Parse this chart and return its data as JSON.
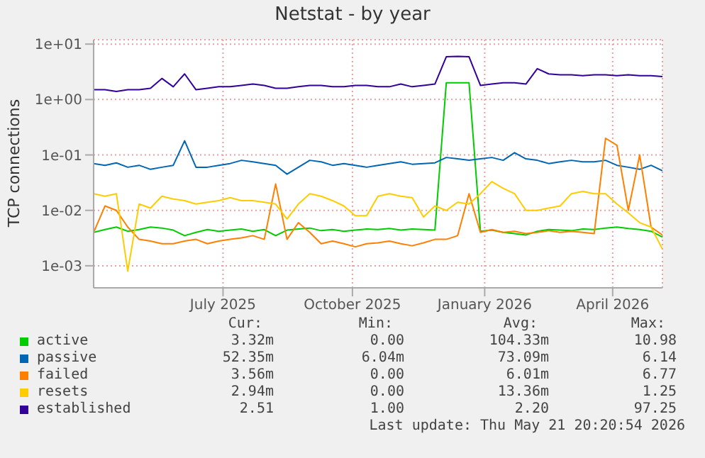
{
  "chart_data": {
    "type": "line",
    "title": "Netstat - by year",
    "ylabel": "TCP connections",
    "log": "y",
    "grid": true,
    "legend": "bottom",
    "marker": "none",
    "line_style": "solid",
    "x": [
      "2025-04-16",
      "2025-04-24",
      "2025-05-02",
      "2025-05-10",
      "2025-05-18",
      "2025-05-26",
      "2025-06-03",
      "2025-06-11",
      "2025-06-19",
      "2025-06-27",
      "2025-07-05",
      "2025-07-13",
      "2025-07-21",
      "2025-07-29",
      "2025-08-06",
      "2025-08-14",
      "2025-08-22",
      "2025-08-30",
      "2025-09-07",
      "2025-09-15",
      "2025-09-23",
      "2025-10-01",
      "2025-10-09",
      "2025-10-17",
      "2025-10-25",
      "2025-11-02",
      "2025-11-10",
      "2025-11-18",
      "2025-11-26",
      "2025-12-04",
      "2025-12-12",
      "2025-12-20",
      "2025-12-28",
      "2026-01-05",
      "2026-01-13",
      "2026-01-21",
      "2026-01-29",
      "2026-02-06",
      "2026-02-14",
      "2026-02-22",
      "2026-03-02",
      "2026-03-10",
      "2026-03-18",
      "2026-03-26",
      "2026-04-03",
      "2026-04-11",
      "2026-04-19",
      "2026-04-27",
      "2026-05-05",
      "2026-05-13",
      "2026-05-21"
    ],
    "xlim": [
      "2025-04-16",
      "2026-05-21"
    ],
    "xticks": [
      {
        "value": "2025-07-16",
        "label": "July 2025"
      },
      {
        "value": "2025-10-15",
        "label": "October 2025"
      },
      {
        "value": "2026-01-16",
        "label": "January 2026"
      },
      {
        "value": "2026-04-16",
        "label": "April 2026"
      }
    ],
    "ylim": [
      0.0004,
      12
    ],
    "yticks": [
      {
        "value": 10,
        "label": "1e+01"
      },
      {
        "value": 1,
        "label": "1e+00"
      },
      {
        "value": 0.1,
        "label": "1e-01"
      },
      {
        "value": 0.01,
        "label": "1e-02"
      },
      {
        "value": 0.001,
        "label": "1e-03"
      }
    ],
    "series": [
      {
        "name": "active",
        "color": "#00cc00",
        "values": [
          0.004,
          0.0045,
          0.005,
          0.0042,
          0.0045,
          0.005,
          0.0048,
          0.0044,
          0.0035,
          0.004,
          0.0045,
          0.0042,
          0.0044,
          0.0046,
          0.0042,
          0.0045,
          0.0035,
          0.0044,
          0.0046,
          0.0048,
          0.0043,
          0.0045,
          0.0042,
          0.0044,
          0.0046,
          0.0045,
          0.0047,
          0.0044,
          0.0046,
          0.0045,
          0.0044,
          2.0,
          2.0,
          2.0,
          0.0042,
          0.0044,
          0.004,
          0.0038,
          0.0036,
          0.0042,
          0.0045,
          0.0044,
          0.0043,
          0.0046,
          0.0045,
          0.0048,
          0.005,
          0.0047,
          0.0045,
          0.0042,
          0.0033
        ]
      },
      {
        "name": "passive",
        "color": "#0066b3",
        "values": [
          0.07,
          0.065,
          0.072,
          0.06,
          0.065,
          0.055,
          0.06,
          0.065,
          0.18,
          0.06,
          0.06,
          0.065,
          0.07,
          0.08,
          0.075,
          0.07,
          0.065,
          0.045,
          0.06,
          0.08,
          0.075,
          0.065,
          0.07,
          0.065,
          0.06,
          0.065,
          0.07,
          0.075,
          0.068,
          0.07,
          0.072,
          0.09,
          0.085,
          0.08,
          0.085,
          0.09,
          0.08,
          0.11,
          0.085,
          0.08,
          0.07,
          0.075,
          0.08,
          0.075,
          0.075,
          0.08,
          0.065,
          0.06,
          0.055,
          0.065,
          0.052
        ]
      },
      {
        "name": "failed",
        "color": "#ff8000",
        "values": [
          0.004,
          0.012,
          0.01,
          0.005,
          0.003,
          0.0028,
          0.0025,
          0.0025,
          0.0028,
          0.003,
          0.0025,
          0.0028,
          0.003,
          0.0032,
          0.0035,
          0.003,
          0.03,
          0.003,
          0.006,
          0.004,
          0.0025,
          0.0028,
          0.0025,
          0.0022,
          0.0025,
          0.0026,
          0.0028,
          0.0025,
          0.0023,
          0.0026,
          0.003,
          0.003,
          0.0035,
          0.02,
          0.004,
          0.0045,
          0.004,
          0.0042,
          0.0038,
          0.004,
          0.0043,
          0.004,
          0.0042,
          0.004,
          0.0038,
          0.2,
          0.15,
          0.01,
          0.1,
          0.005,
          0.0036
        ]
      },
      {
        "name": "resets",
        "color": "#ffcc00",
        "values": [
          0.02,
          0.018,
          0.02,
          0.0008,
          0.013,
          0.011,
          0.018,
          0.016,
          0.015,
          0.013,
          0.014,
          0.015,
          0.017,
          0.015,
          0.015,
          0.014,
          0.013,
          0.007,
          0.013,
          0.02,
          0.018,
          0.015,
          0.012,
          0.008,
          0.008,
          0.018,
          0.02,
          0.018,
          0.017,
          0.0076,
          0.012,
          0.01,
          0.014,
          0.013,
          0.02,
          0.033,
          0.025,
          0.02,
          0.01,
          0.01,
          0.011,
          0.012,
          0.02,
          0.022,
          0.02,
          0.02,
          0.013,
          0.009,
          0.006,
          0.005,
          0.002
        ]
      },
      {
        "name": "established",
        "color": "#330099",
        "values": [
          1.5,
          1.5,
          1.4,
          1.5,
          1.5,
          1.6,
          2.4,
          1.7,
          2.9,
          1.5,
          1.6,
          1.7,
          1.7,
          1.8,
          1.9,
          1.8,
          1.6,
          1.6,
          1.7,
          1.8,
          1.8,
          1.7,
          1.7,
          1.8,
          1.8,
          1.7,
          1.7,
          1.9,
          1.7,
          1.8,
          1.9,
          5.9,
          6.0,
          5.9,
          1.8,
          1.9,
          2.0,
          2.0,
          1.9,
          3.6,
          2.9,
          2.8,
          2.8,
          2.7,
          2.8,
          2.8,
          2.7,
          2.8,
          2.7,
          2.7,
          2.6
        ]
      }
    ],
    "annotations": [
      "Cur:",
      "Min:",
      "Avg:",
      "Max:",
      "3.32m",
      "0.00",
      "104.33m",
      "10.98",
      "52.35m",
      "6.04m",
      "73.09m",
      "6.14",
      "3.56m",
      "0.00",
      "6.01m",
      "6.77",
      "2.94m",
      "0.00",
      "13.36m",
      "1.25",
      "2.51",
      "1.00",
      "2.20",
      "97.25",
      "Last update: Thu May 21 20:20:54 2026"
    ]
  }
}
